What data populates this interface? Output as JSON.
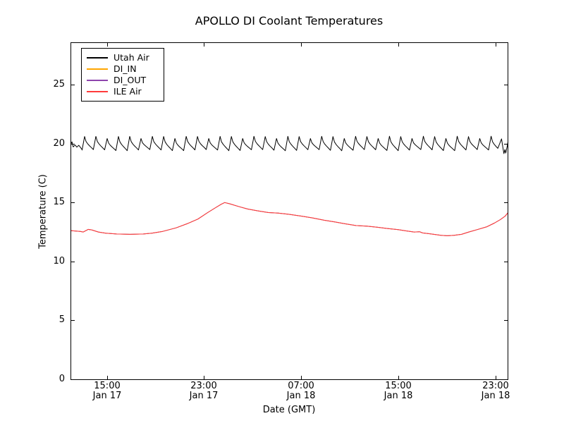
{
  "title": "APOLLO DI Coolant Temperatures",
  "axes": {
    "xlabel": "Date (GMT)",
    "ylabel": "Temperature (C)",
    "x_range_hours": [
      0,
      36
    ],
    "x_epoch_note": "hour 0 = Jan 17 12:00 GMT",
    "y_range": [
      0,
      28.6
    ],
    "grid": false,
    "x_ticks": [
      {
        "time": "15:00",
        "date": "Jan 17",
        "hour": 3
      },
      {
        "time": "23:00",
        "date": "Jan 17",
        "hour": 11
      },
      {
        "time": "07:00",
        "date": "Jan 18",
        "hour": 19
      },
      {
        "time": "15:00",
        "date": "Jan 18",
        "hour": 27
      },
      {
        "time": "23:00",
        "date": "Jan 18",
        "hour": 35
      }
    ],
    "y_ticks": [
      {
        "label": "25",
        "value": 25
      },
      {
        "label": "20",
        "value": 20
      },
      {
        "label": "15",
        "value": 15
      },
      {
        "label": "10",
        "value": 10
      },
      {
        "label": "5",
        "value": 5
      },
      {
        "label": "0",
        "value": 0
      }
    ]
  },
  "legend": {
    "position": "upper left",
    "entries": [
      {
        "label": "Utah Air",
        "color": "#000000"
      },
      {
        "label": "DI_IN",
        "color": "#ffa500"
      },
      {
        "label": "DI_OUT",
        "color": "#8e44ad"
      },
      {
        "label": "ILE Air",
        "color": "#ff3b3b"
      }
    ]
  },
  "chart_data": {
    "type": "line",
    "title": "APOLLO DI Coolant Temperatures",
    "xlabel": "Date (GMT)",
    "ylabel": "Temperature (C)",
    "x_unit": "hours since Jan 17 12:00 GMT",
    "ylim": [
      0,
      28.6
    ],
    "xlim_hours": [
      0,
      36
    ],
    "legend_position": "upper left",
    "draw_order": [
      "DI_IN",
      "DI_OUT",
      "ILE Air",
      "Utah Air"
    ],
    "series": [
      {
        "name": "Utah Air",
        "color": "#000000",
        "summary": "sawtooth oscillation around 20 C: troughs ~19.45, sharp peaks ~20.55, period ~56 min, fast rise then exponential decay",
        "pattern": {
          "kind": "rise-decay-sawtooth",
          "start_hour": 0.95,
          "cycles": 37,
          "period_hours": 0.93,
          "trough": 19.45,
          "peak": 20.55,
          "rise_fraction": 0.225,
          "peak_jitter": 0.12,
          "trough_jitter": 0.05,
          "decay_fractions": [
            0.355,
            0.5,
            0.65,
            0.82
          ],
          "decay_amplitudes": [
            0.62,
            0.44,
            0.3,
            0.16
          ]
        },
        "intro_points": [
          [
            0,
            19.9
          ],
          [
            0.12,
            20.15
          ],
          [
            0.22,
            19.72
          ],
          [
            0.38,
            19.88
          ],
          [
            0.52,
            19.7
          ],
          [
            0.68,
            19.86
          ],
          [
            0.82,
            19.68
          ],
          [
            0.95,
            19.5
          ]
        ],
        "outro_points": [
          [
            35.5,
            20.4
          ],
          [
            35.62,
            19.6
          ],
          [
            35.7,
            19.15
          ],
          [
            35.78,
            19.5
          ],
          [
            35.85,
            19.2
          ],
          [
            35.98,
            19.85
          ],
          [
            36.05,
            20.3
          ]
        ]
      },
      {
        "name": "DI_IN",
        "color": "#ffa500",
        "points_ref": "ILE Air",
        "note": "no visibly distinct trace in plot; coincident with / hidden beneath the ILE Air line"
      },
      {
        "name": "DI_OUT",
        "color": "#8e44ad",
        "points_ref": "ILE Air",
        "note": "no visibly distinct trace in plot; coincident with / hidden beneath the ILE Air line"
      },
      {
        "name": "ILE Air",
        "color": "#ff3b3b",
        "points": [
          [
            0,
            12.62
          ],
          [
            0.8,
            12.55
          ],
          [
            1.05,
            12.5
          ],
          [
            1.45,
            12.72
          ],
          [
            1.75,
            12.68
          ],
          [
            2.3,
            12.5
          ],
          [
            2.9,
            12.4
          ],
          [
            3.8,
            12.33
          ],
          [
            4.9,
            12.3
          ],
          [
            6.0,
            12.33
          ],
          [
            6.7,
            12.4
          ],
          [
            7.6,
            12.55
          ],
          [
            8.7,
            12.85
          ],
          [
            9.6,
            13.2
          ],
          [
            10.5,
            13.6
          ],
          [
            11.3,
            14.15
          ],
          [
            12.0,
            14.6
          ],
          [
            12.4,
            14.85
          ],
          [
            12.7,
            15.0
          ],
          [
            13.1,
            14.9
          ],
          [
            13.9,
            14.65
          ],
          [
            14.6,
            14.45
          ],
          [
            15.4,
            14.3
          ],
          [
            16.3,
            14.15
          ],
          [
            17.1,
            14.1
          ],
          [
            18.0,
            14.0
          ],
          [
            19.0,
            13.85
          ],
          [
            19.9,
            13.7
          ],
          [
            20.9,
            13.5
          ],
          [
            21.8,
            13.35
          ],
          [
            22.6,
            13.2
          ],
          [
            23.5,
            13.05
          ],
          [
            24.4,
            13.0
          ],
          [
            25.3,
            12.9
          ],
          [
            26.1,
            12.8
          ],
          [
            27.0,
            12.7
          ],
          [
            27.6,
            12.6
          ],
          [
            28.3,
            12.5
          ],
          [
            28.75,
            12.52
          ],
          [
            29.0,
            12.42
          ],
          [
            29.6,
            12.35
          ],
          [
            30.5,
            12.22
          ],
          [
            31.0,
            12.18
          ],
          [
            31.6,
            12.22
          ],
          [
            32.2,
            12.3
          ],
          [
            32.8,
            12.5
          ],
          [
            33.5,
            12.7
          ],
          [
            34.3,
            12.95
          ],
          [
            34.9,
            13.25
          ],
          [
            35.4,
            13.55
          ],
          [
            35.8,
            13.85
          ],
          [
            36.0,
            14.1
          ]
        ]
      }
    ]
  }
}
